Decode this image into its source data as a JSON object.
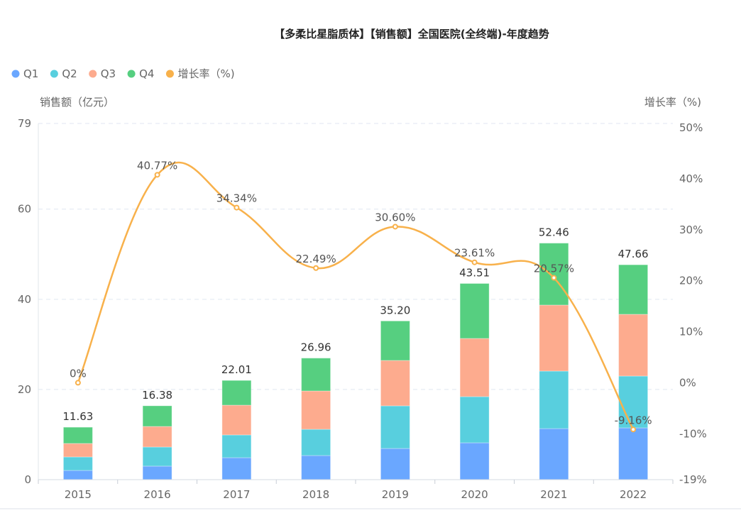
{
  "chart_data": {
    "type": "bar",
    "stacked": true,
    "title": "【多柔比星脂质体】【销售额】全国医院(全终端)-年度趋势",
    "ylabel": "销售额（亿元）",
    "ylabel_right": "增长率（%)",
    "ylim": [
      0,
      79
    ],
    "yticks": [
      0,
      20,
      40,
      60,
      79
    ],
    "ylim_right": [
      -19,
      50
    ],
    "yticks_right": [
      "-19%",
      "-10%",
      "0%",
      "10%",
      "20%",
      "30%",
      "40%",
      "50%"
    ],
    "yticks_right_values": [
      -19,
      -10,
      0,
      10,
      20,
      30,
      40,
      50
    ],
    "grid": true,
    "legend_position": "top-left",
    "categories": [
      "2015",
      "2016",
      "2017",
      "2018",
      "2019",
      "2020",
      "2021",
      "2022"
    ],
    "series": [
      {
        "name": "Q1",
        "color": "#6aa7ff",
        "values": [
          2.05,
          3.0,
          4.88,
          5.35,
          6.92,
          8.18,
          11.33,
          11.49
        ]
      },
      {
        "name": "Q2",
        "color": "#58cfde",
        "values": [
          2.99,
          4.24,
          5.04,
          5.82,
          9.45,
          10.23,
          12.75,
          11.49
        ]
      },
      {
        "name": "Q3",
        "color": "#fdab8e",
        "values": [
          2.99,
          4.56,
          6.6,
          8.5,
          10.07,
          12.91,
          14.64,
          13.69
        ]
      },
      {
        "name": "Q4",
        "color": "#56cf80",
        "values": [
          3.6,
          4.58,
          5.49,
          7.29,
          8.76,
          12.19,
          13.74,
          10.99
        ]
      }
    ],
    "totals": [
      "11.63",
      "16.38",
      "22.01",
      "26.96",
      "35.20",
      "43.51",
      "52.46",
      "47.66"
    ],
    "line_series": {
      "name": "增长率（%)",
      "color": "#f8b14b",
      "axis": "right",
      "values": [
        0,
        40.77,
        34.34,
        22.49,
        30.6,
        23.61,
        20.57,
        -9.16
      ],
      "labels": [
        "0%",
        "40.77%",
        "34.34%",
        "22.49%",
        "30.60%",
        "23.61%",
        "20.57%",
        "-9.16%"
      ]
    }
  }
}
